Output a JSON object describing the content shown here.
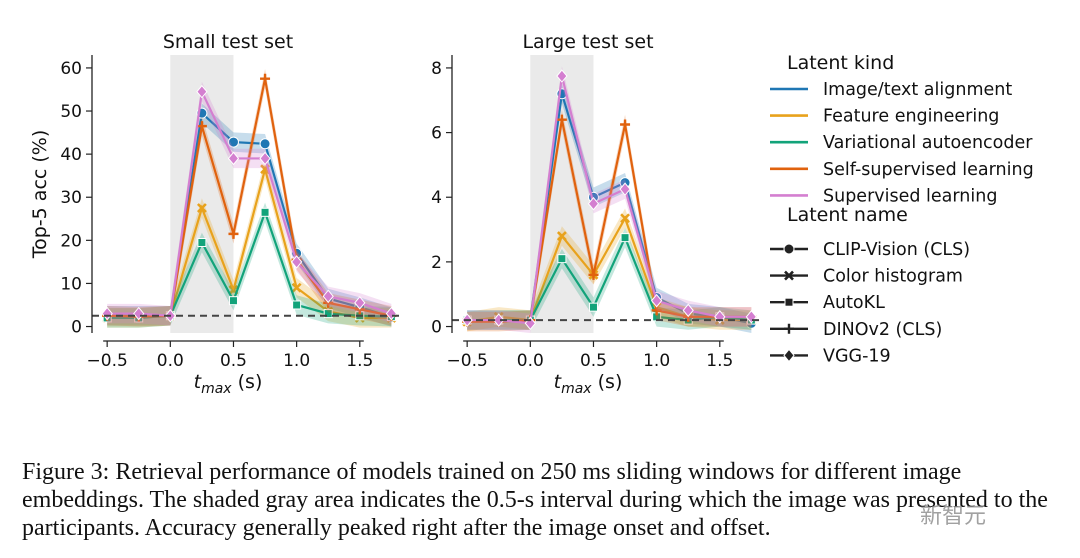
{
  "colors": {
    "Image/text alignment": "#1f77b4",
    "Feature engineering": "#e8a21c",
    "Variational autoencoder": "#12a37a",
    "Self-supervised learning": "#e0620e",
    "Supervised learning": "#d47fd0",
    "chance": "#444444",
    "shade": "#e6e6e6"
  },
  "chart_data": [
    {
      "type": "line",
      "title": "Small test set",
      "xlabel_main": "t",
      "xlabel_sub": "max",
      "xlabel_unit": " (s)",
      "ylabel": "Top-5 acc (%)",
      "xlim": [
        -0.62,
        1.85
      ],
      "ylim": [
        -1.5,
        63
      ],
      "xticks": [
        -0.5,
        0.0,
        0.5,
        1.0,
        1.5
      ],
      "xtick_labels": [
        "−0.5",
        "0.0",
        "0.5",
        "1.0",
        "1.5"
      ],
      "yticks": [
        0,
        10,
        20,
        30,
        40,
        50,
        60
      ],
      "ytick_labels": [
        "0",
        "10",
        "20",
        "30",
        "40",
        "50",
        "60"
      ],
      "shade_x": [
        0.0,
        0.5
      ],
      "chance_level": 2.5,
      "x": [
        -0.5,
        -0.25,
        0.0,
        0.25,
        0.5,
        0.75,
        1.0,
        1.25,
        1.5,
        1.75
      ],
      "series": [
        {
          "name": "CLIP-Vision (CLS)",
          "kind": "Image/text alignment",
          "marker": "circle",
          "values": [
            2.5,
            2.5,
            2.5,
            49.5,
            42.8,
            42.4,
            17.0,
            6.5,
            4.5,
            2.2
          ]
        },
        {
          "name": "Color histogram",
          "kind": "Feature engineering",
          "marker": "x",
          "values": [
            2.0,
            2.0,
            2.5,
            27.5,
            8.5,
            36.5,
            9.0,
            3.5,
            2.0,
            2.0
          ]
        },
        {
          "name": "AutoKL",
          "kind": "Variational autoencoder",
          "marker": "square",
          "values": [
            2.0,
            2.0,
            2.5,
            19.5,
            6.0,
            26.5,
            5.0,
            3.0,
            2.5,
            2.3
          ]
        },
        {
          "name": "DINOv2 (CLS)",
          "kind": "Self-supervised learning",
          "marker": "plus",
          "values": [
            2.5,
            2.3,
            2.5,
            46.5,
            21.5,
            57.5,
            15.5,
            5.5,
            4.0,
            2.5
          ]
        },
        {
          "name": "VGG-19",
          "kind": "Supervised learning",
          "marker": "diamond",
          "values": [
            3.0,
            3.0,
            2.5,
            54.5,
            39.0,
            39.0,
            15.0,
            7.0,
            5.5,
            3.0
          ]
        }
      ]
    },
    {
      "type": "line",
      "title": "Large test set",
      "xlabel_main": "t",
      "xlabel_sub": "max",
      "xlabel_unit": " (s)",
      "ylabel": "",
      "xlim": [
        -0.62,
        1.85
      ],
      "ylim": [
        -0.2,
        8.4
      ],
      "xticks": [
        -0.5,
        0.0,
        0.5,
        1.0,
        1.5
      ],
      "xtick_labels": [
        "−0.5",
        "0.0",
        "0.5",
        "1.0",
        "1.5"
      ],
      "yticks": [
        0,
        2,
        4,
        6,
        8
      ],
      "ytick_labels": [
        "0",
        "2",
        "4",
        "6",
        "8"
      ],
      "shade_x": [
        0.0,
        0.5
      ],
      "chance_level": 0.2,
      "x": [
        -0.5,
        -0.25,
        0.0,
        0.25,
        0.5,
        0.75,
        1.0,
        1.25,
        1.5,
        1.75
      ],
      "series": [
        {
          "name": "CLIP-Vision (CLS)",
          "kind": "Image/text alignment",
          "marker": "circle",
          "values": [
            0.2,
            0.2,
            0.2,
            7.2,
            4.0,
            4.45,
            0.9,
            0.4,
            0.3,
            0.1
          ]
        },
        {
          "name": "Color histogram",
          "kind": "Feature engineering",
          "marker": "x",
          "values": [
            0.15,
            0.3,
            0.2,
            2.8,
            1.6,
            3.35,
            0.6,
            0.3,
            0.2,
            0.2
          ]
        },
        {
          "name": "AutoKL",
          "kind": "Variational autoencoder",
          "marker": "square",
          "values": [
            0.2,
            0.2,
            0.2,
            2.1,
            0.6,
            2.75,
            0.3,
            0.2,
            0.3,
            0.2
          ]
        },
        {
          "name": "DINOv2 (CLS)",
          "kind": "Self-supervised learning",
          "marker": "plus",
          "values": [
            0.15,
            0.15,
            0.2,
            6.4,
            1.6,
            6.25,
            0.5,
            0.3,
            0.3,
            0.3
          ]
        },
        {
          "name": "VGG-19",
          "kind": "Supervised learning",
          "marker": "diamond",
          "values": [
            0.2,
            0.2,
            0.1,
            7.75,
            3.8,
            4.25,
            0.8,
            0.5,
            0.3,
            0.3
          ]
        }
      ]
    }
  ],
  "legend": {
    "kind_title": "Latent kind",
    "kinds": [
      "Image/text alignment",
      "Feature engineering",
      "Variational autoencoder",
      "Self-supervised learning",
      "Supervised learning"
    ],
    "name_title": "Latent name",
    "names": [
      {
        "label": "CLIP-Vision (CLS)",
        "marker": "circle"
      },
      {
        "label": "Color histogram",
        "marker": "x"
      },
      {
        "label": "AutoKL",
        "marker": "square"
      },
      {
        "label": "DINOv2 (CLS)",
        "marker": "plus"
      },
      {
        "label": "VGG-19",
        "marker": "diamond"
      }
    ]
  },
  "caption": "Figure 3: Retrieval performance of models trained on 250 ms sliding windows for different image embeddings. The shaded gray area indicates the 0.5-s interval during which the image was presented to the participants. Accuracy generally peaked right after the image onset and offset.",
  "watermark": "新智元"
}
